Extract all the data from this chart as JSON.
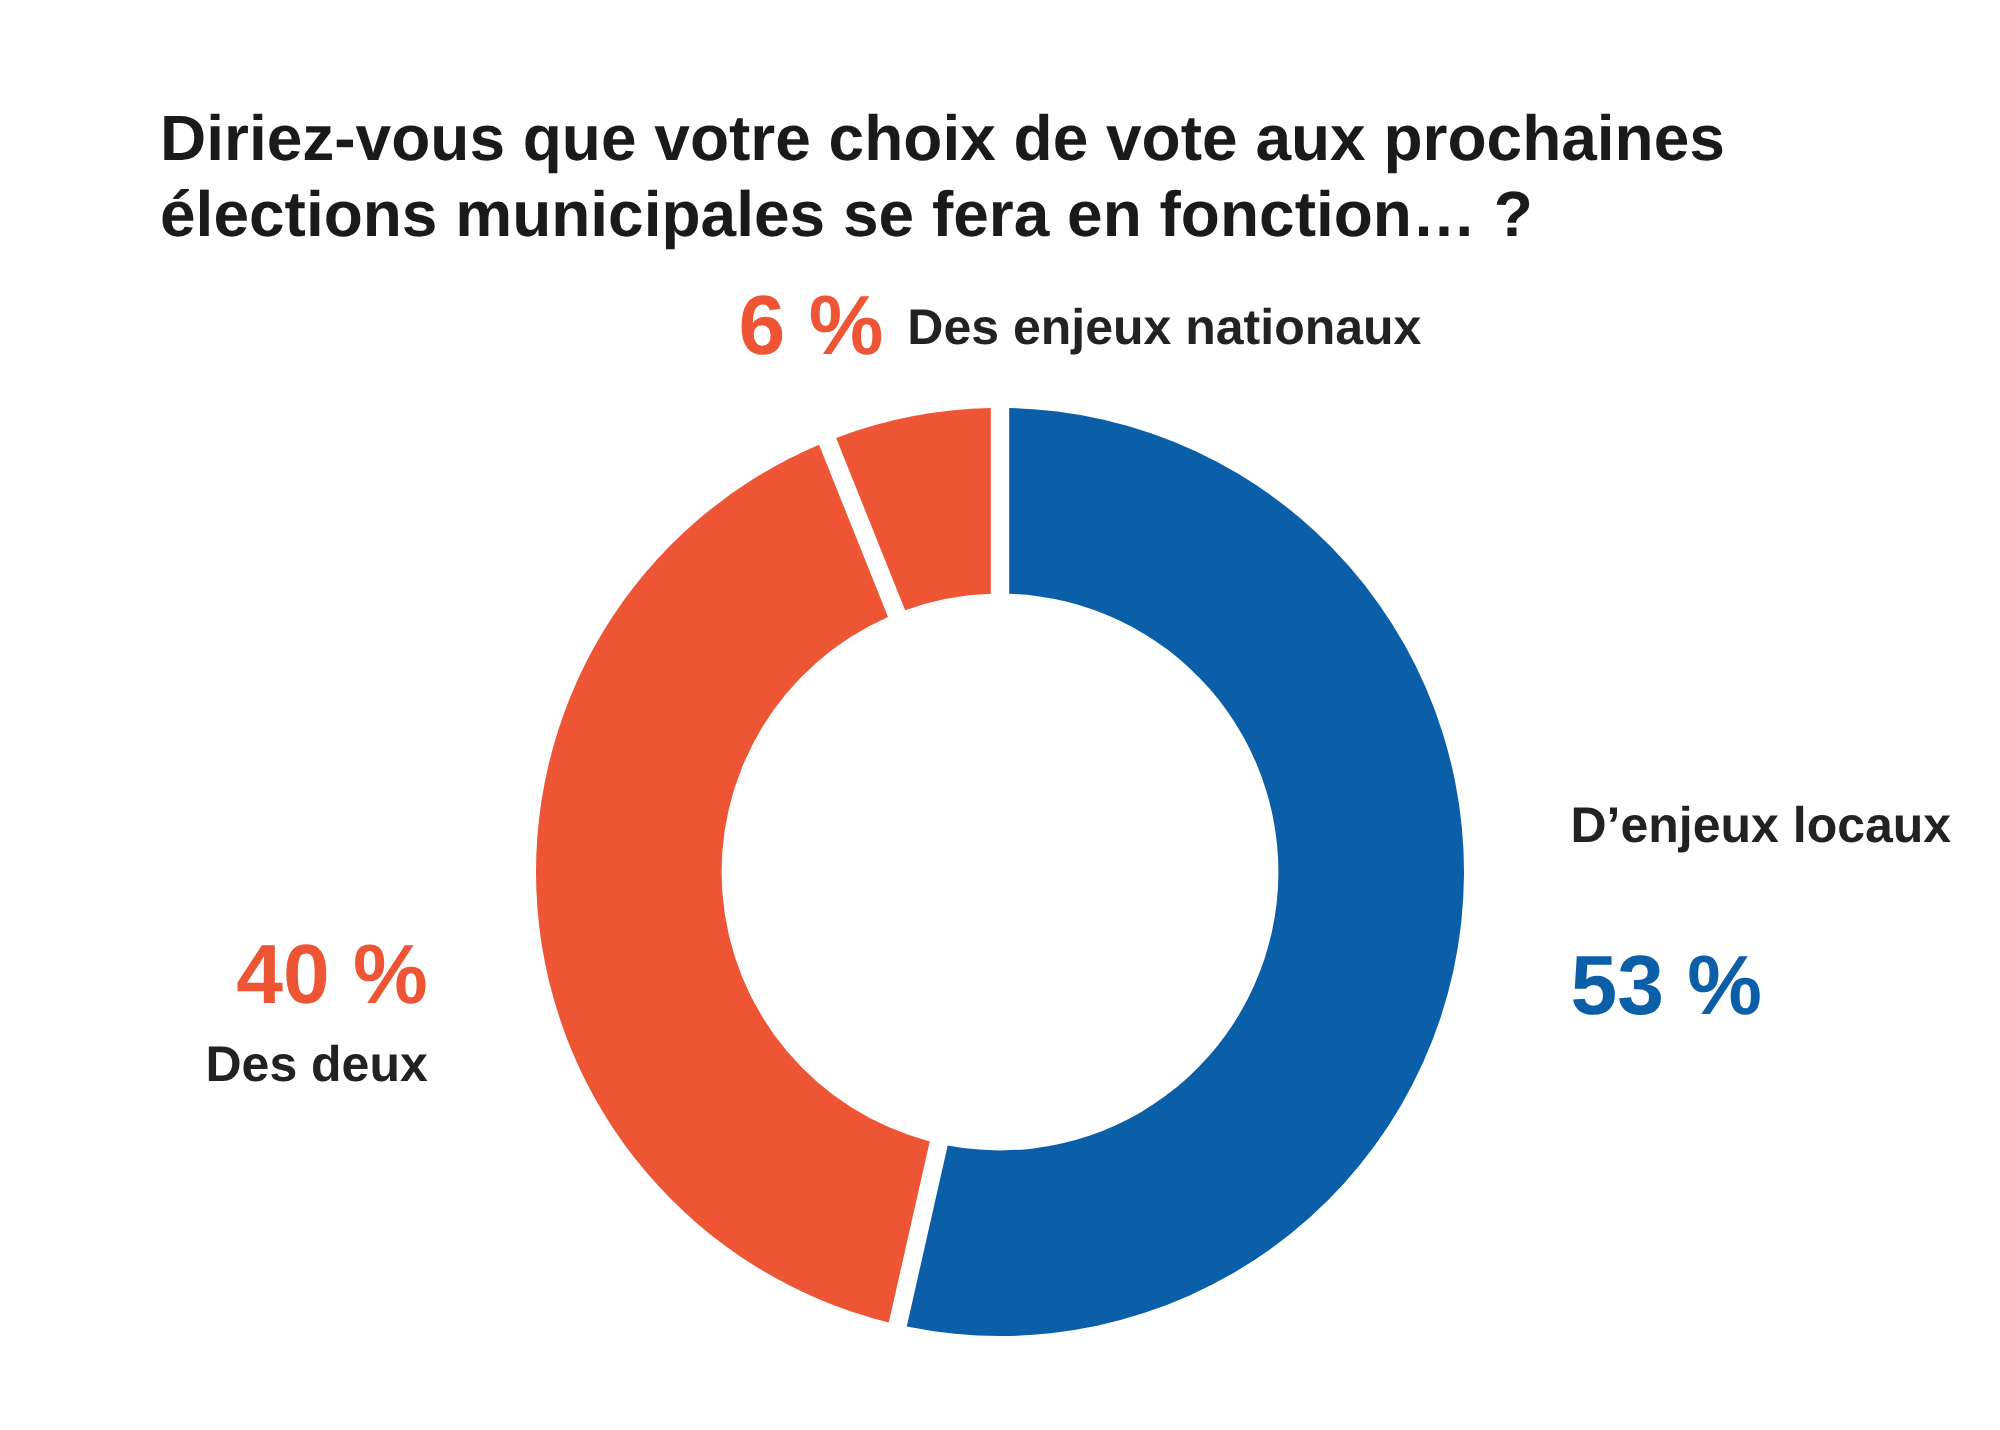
{
  "chart_data": {
    "type": "donut",
    "title": "Diriez-vous que votre choix de vote aux prochaines élections municipales se fera en fonction… ?",
    "categories": [
      "D’enjeux locaux",
      "Des deux",
      "Des enjeux nationaux"
    ],
    "values": [
      53,
      40,
      6
    ],
    "colors": [
      "#0b5ea8",
      "#ee5535",
      "#ee5535"
    ],
    "value_labels": [
      "53 %",
      "40 %",
      "6 %"
    ]
  }
}
